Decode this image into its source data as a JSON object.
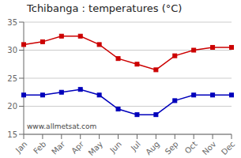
{
  "chart_data": {
    "type": "line",
    "title": "Tchibanga : temperatures (°C)",
    "categories": [
      "Jan",
      "Feb",
      "Mar",
      "Apr",
      "May",
      "Jun",
      "Jul",
      "Aug",
      "Sep",
      "Oct",
      "Nov",
      "Dec"
    ],
    "series": [
      {
        "color": "#cc0000",
        "marker": "square",
        "values": [
          31.0,
          31.5,
          32.5,
          32.5,
          31.0,
          28.5,
          27.5,
          26.5,
          29.0,
          30.0,
          30.5,
          30.5
        ]
      },
      {
        "color": "#0000bb",
        "marker": "square",
        "values": [
          22.0,
          22.0,
          22.5,
          23.0,
          22.0,
          19.5,
          18.5,
          18.5,
          21.0,
          22.0,
          22.0,
          22.0
        ]
      }
    ],
    "ylim": [
      15,
      35
    ],
    "yticks": [
      15,
      20,
      25,
      30,
      35
    ],
    "grid": true,
    "annotation": "www.allmetsat.com"
  }
}
